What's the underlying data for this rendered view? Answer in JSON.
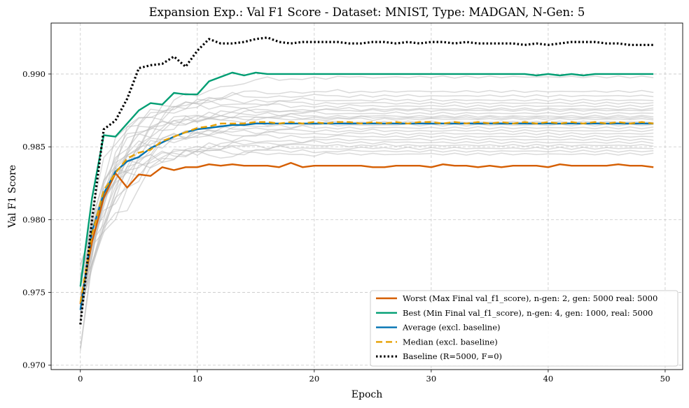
{
  "chart_data": {
    "type": "line",
    "title": "Expansion Exp.: Val F1 Score - Dataset: MNIST, Type: MADGAN, N-Gen: 5",
    "xlabel": "Epoch",
    "ylabel": "Val F1 Score",
    "xlim": [
      -2.5,
      51.5
    ],
    "ylim": [
      0.9697,
      0.9935
    ],
    "xticks": [
      0,
      10,
      20,
      30,
      40,
      50
    ],
    "yticks": [
      0.97,
      0.975,
      0.98,
      0.985,
      0.99
    ],
    "ytick_labels": [
      "0.970",
      "0.975",
      "0.980",
      "0.985",
      "0.990"
    ],
    "grid": true,
    "legend_position": "lower-right",
    "series": [
      {
        "name": "Worst (Max Final val_f1_score), n-gen: 2, gen: 5000 real: 5000",
        "color": "#D55E00",
        "style": "solid",
        "values": [
          0.9742,
          0.9785,
          0.9815,
          0.9832,
          0.9822,
          0.9831,
          0.983,
          0.9836,
          0.9834,
          0.9836,
          0.9836,
          0.9838,
          0.9837,
          0.9838,
          0.9837,
          0.9837,
          0.9837,
          0.9836,
          0.9839,
          0.9836,
          0.9837,
          0.9837,
          0.9837,
          0.9837,
          0.9837,
          0.9836,
          0.9836,
          0.9837,
          0.9837,
          0.9837,
          0.9836,
          0.9838,
          0.9837,
          0.9837,
          0.9836,
          0.9837,
          0.9836,
          0.9837,
          0.9837,
          0.9837,
          0.9836,
          0.9838,
          0.9837,
          0.9837,
          0.9837,
          0.9837,
          0.9838,
          0.9837,
          0.9837,
          0.9836
        ]
      },
      {
        "name": "Best (Min Final val_f1_score), n-gen: 4, gen: 1000, real: 5000",
        "color": "#009E73",
        "style": "solid",
        "values": [
          0.9754,
          0.9815,
          0.9858,
          0.9857,
          0.9866,
          0.9875,
          0.988,
          0.9879,
          0.9887,
          0.9886,
          0.9886,
          0.9895,
          0.9898,
          0.9901,
          0.9899,
          0.9901,
          0.99,
          0.99,
          0.99,
          0.99,
          0.99,
          0.99,
          0.99,
          0.99,
          0.99,
          0.99,
          0.99,
          0.99,
          0.99,
          0.99,
          0.99,
          0.99,
          0.99,
          0.99,
          0.99,
          0.99,
          0.99,
          0.99,
          0.99,
          0.9899,
          0.99,
          0.9899,
          0.99,
          0.9899,
          0.99,
          0.99,
          0.99,
          0.99,
          0.99,
          0.99
        ]
      },
      {
        "name": "Average (excl. baseline)",
        "color": "#0072B2",
        "style": "solid",
        "values": [
          0.9738,
          0.9792,
          0.9818,
          0.9833,
          0.984,
          0.9843,
          0.9849,
          0.9853,
          0.9857,
          0.986,
          0.9862,
          0.9863,
          0.9864,
          0.9865,
          0.9865,
          0.9866,
          0.9866,
          0.9866,
          0.9866,
          0.9866,
          0.9866,
          0.9866,
          0.9866,
          0.9866,
          0.9866,
          0.9866,
          0.9866,
          0.9866,
          0.9866,
          0.9866,
          0.9866,
          0.9866,
          0.9866,
          0.9866,
          0.9866,
          0.9866,
          0.9866,
          0.9866,
          0.9866,
          0.9866,
          0.9866,
          0.9866,
          0.9866,
          0.9866,
          0.9866,
          0.9866,
          0.9866,
          0.9866,
          0.9866,
          0.9866
        ]
      },
      {
        "name": "Median (excl. baseline)",
        "color": "#E69F00",
        "style": "dashed",
        "values": [
          0.9743,
          0.979,
          0.982,
          0.9832,
          0.9842,
          0.9846,
          0.9848,
          0.9854,
          0.9857,
          0.986,
          0.9863,
          0.9864,
          0.9866,
          0.9866,
          0.9866,
          0.9867,
          0.9867,
          0.9866,
          0.9867,
          0.9866,
          0.9867,
          0.9866,
          0.9867,
          0.9867,
          0.9866,
          0.9867,
          0.9866,
          0.9867,
          0.9866,
          0.9867,
          0.9867,
          0.9866,
          0.9867,
          0.9866,
          0.9867,
          0.9866,
          0.9867,
          0.9866,
          0.9867,
          0.9866,
          0.9867,
          0.9866,
          0.9867,
          0.9866,
          0.9867,
          0.9866,
          0.9867,
          0.9866,
          0.9867,
          0.9866
        ]
      },
      {
        "name": "Baseline (R=5000, F=0)",
        "color": "#000000",
        "style": "dotted",
        "values": [
          0.9728,
          0.98,
          0.9862,
          0.9868,
          0.9883,
          0.9904,
          0.9906,
          0.9907,
          0.9912,
          0.9905,
          0.9916,
          0.9924,
          0.9921,
          0.9921,
          0.9922,
          0.9924,
          0.9925,
          0.9922,
          0.9921,
          0.9922,
          0.9922,
          0.9922,
          0.9922,
          0.9921,
          0.9921,
          0.9922,
          0.9922,
          0.9921,
          0.9922,
          0.9921,
          0.9922,
          0.9922,
          0.9921,
          0.9922,
          0.9921,
          0.9921,
          0.9921,
          0.9921,
          0.992,
          0.9921,
          0.992,
          0.9921,
          0.9922,
          0.9922,
          0.9922,
          0.9921,
          0.9921,
          0.992,
          0.992,
          0.992
        ]
      }
    ],
    "background_runs": {
      "color": "#bbbbbb",
      "final_values": [
        0.9898,
        0.9888,
        0.9885,
        0.9882,
        0.988,
        0.9878,
        0.9876,
        0.9875,
        0.9873,
        0.9871,
        0.987,
        0.9869,
        0.9867,
        0.9865,
        0.9863,
        0.9861,
        0.9859,
        0.9857,
        0.9855,
        0.9853,
        0.9851,
        0.9849,
        0.9847,
        0.9845
      ],
      "start_values": [
        0.971,
        0.9722,
        0.973,
        0.9735,
        0.974,
        0.9745,
        0.975,
        0.9755,
        0.976,
        0.9765,
        0.9728,
        0.9733,
        0.9738,
        0.9743,
        0.9748,
        0.9753,
        0.9758,
        0.9724,
        0.9736,
        0.9742,
        0.9747,
        0.9752,
        0.9757,
        0.9762
      ]
    }
  }
}
